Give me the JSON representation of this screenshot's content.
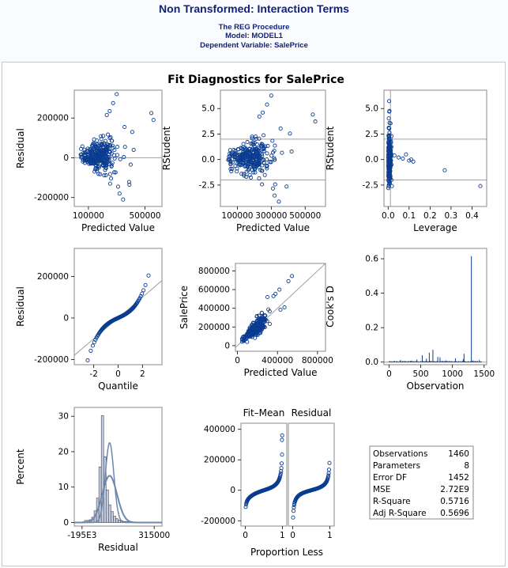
{
  "header": {
    "title": "Non Transformed: Interaction Terms",
    "procedure": "The REG Procedure",
    "model": "Model: MODEL1",
    "dependent": "Dependent Variable: SalePrice"
  },
  "figure_title": "Fit Diagnostics for SalePrice",
  "colors": {
    "marker": "#0a3d91",
    "ref": "#a0a0a0",
    "bar_fill": "#c3cbe2",
    "density": "#6e88ad",
    "heading": "#112277"
  },
  "stats_table": [
    [
      "Observations",
      "1460"
    ],
    [
      "Parameters",
      "8"
    ],
    [
      "Error DF",
      "1452"
    ],
    [
      "MSE",
      "2.72E9"
    ],
    [
      "R-Square",
      "0.5716"
    ],
    [
      "Adj R-Square",
      "0.5696"
    ]
  ],
  "chart_data": [
    {
      "id": "resid-vs-pred",
      "type": "scatter",
      "xlabel": "Predicted Value",
      "ylabel": "Residual",
      "xlim": [
        0,
        620000
      ],
      "ylim": [
        -245000,
        340000
      ],
      "xticks": [
        {
          "v": 100000,
          "t": "100000"
        },
        {
          "v": 500000,
          "t": "500000"
        }
      ],
      "yticks": [
        {
          "v": 200000,
          "t": "200000"
        },
        {
          "v": 0,
          "t": "0"
        },
        {
          "v": -200000,
          "t": "-200000"
        }
      ],
      "refs_y": [
        0
      ],
      "seed": 11
    },
    {
      "id": "rstudent-vs-pred",
      "type": "scatter",
      "xlabel": "Predicted Value",
      "ylabel": "RStudent",
      "xlim": [
        0,
        620000
      ],
      "ylim": [
        -4.6,
        6.8
      ],
      "xticks": [
        {
          "v": 100000,
          "t": "100000"
        },
        {
          "v": 300000,
          "t": "300000"
        },
        {
          "v": 500000,
          "t": "500000"
        }
      ],
      "yticks": [
        {
          "v": 5,
          "t": "5.0"
        },
        {
          "v": 2.5,
          "t": "2.5"
        },
        {
          "v": 0,
          "t": "0.0"
        },
        {
          "v": -2.5,
          "t": "-2.5"
        }
      ],
      "refs_y": [
        2,
        -2
      ],
      "seed": 23
    },
    {
      "id": "rstudent-vs-leverage",
      "type": "scatter",
      "xlabel": "Leverage",
      "ylabel": "RStudent",
      "xlim": [
        -0.02,
        0.47
      ],
      "ylim": [
        -4.6,
        6.8
      ],
      "xticks": [
        {
          "v": 0,
          "t": "0.0"
        },
        {
          "v": 0.1,
          "t": "0.1"
        },
        {
          "v": 0.2,
          "t": "0.2"
        },
        {
          "v": 0.3,
          "t": "0.3"
        },
        {
          "v": 0.4,
          "t": "0.4"
        }
      ],
      "yticks": [
        {
          "v": 5,
          "t": "5.0"
        },
        {
          "v": 2.5,
          "t": "2.5"
        },
        {
          "v": 0,
          "t": "0.0"
        },
        {
          "v": -2.5,
          "t": "-2.5"
        }
      ],
      "refs_y": [
        2,
        -2
      ],
      "refs_x": [
        0.011
      ],
      "seed": 37
    },
    {
      "id": "qq-residual",
      "type": "scatter",
      "xlabel": "Quantile",
      "ylabel": "Residual",
      "xlim": [
        -3.6,
        3.6
      ],
      "ylim": [
        -225000,
        335000
      ],
      "xticks": [
        {
          "v": -2,
          "t": "-2"
        },
        {
          "v": 0,
          "t": "0"
        },
        {
          "v": 2,
          "t": "2"
        }
      ],
      "yticks": [
        {
          "v": 200000,
          "t": "200000"
        },
        {
          "v": 0,
          "t": "0"
        },
        {
          "v": -200000,
          "t": "-200000"
        }
      ],
      "ref_line": [
        -3.6,
        -180000,
        3.6,
        180000
      ],
      "seed": 41
    },
    {
      "id": "saleprice-vs-pred",
      "type": "scatter",
      "xlabel": "Predicted Value",
      "ylabel": "SalePrice",
      "xlim": [
        -20000,
        880000
      ],
      "ylim": [
        -60000,
        880000
      ],
      "xticks": [
        {
          "v": 0,
          "t": "0"
        },
        {
          "v": 400000,
          "t": "400000"
        },
        {
          "v": 800000,
          "t": "800000"
        }
      ],
      "yticks": [
        {
          "v": 800000,
          "t": "800000"
        },
        {
          "v": 600000,
          "t": "600000"
        },
        {
          "v": 400000,
          "t": "400000"
        },
        {
          "v": 200000,
          "t": "200000"
        },
        {
          "v": 0,
          "t": "0"
        }
      ],
      "ref_line": [
        -20000,
        -20000,
        880000,
        880000
      ],
      "seed": 53
    },
    {
      "id": "cooks-d",
      "type": "needle",
      "xlabel": "Observation",
      "ylabel": "Cook's D",
      "xlim": [
        -80,
        1540
      ],
      "ylim": [
        -0.015,
        0.66
      ],
      "xticks": [
        {
          "v": 0,
          "t": "0"
        },
        {
          "v": 500,
          "t": "500"
        },
        {
          "v": 1000,
          "t": "1000"
        },
        {
          "v": 1500,
          "t": "1500"
        }
      ],
      "yticks": [
        {
          "v": 0.6,
          "t": "0.6"
        },
        {
          "v": 0.4,
          "t": "0.4"
        },
        {
          "v": 0.2,
          "t": "0.2"
        },
        {
          "v": 0,
          "t": "0.0"
        }
      ],
      "refs_y": [
        0
      ],
      "spikes": [
        [
          182,
          0.012
        ],
        [
          342,
          0.008
        ],
        [
          440,
          0.015
        ],
        [
          524,
          0.04
        ],
        [
          590,
          0.02
        ],
        [
          635,
          0.055
        ],
        [
          692,
          0.072
        ],
        [
          769,
          0.03
        ],
        [
          804,
          0.028
        ],
        [
          898,
          0.01
        ],
        [
          1047,
          0.022
        ],
        [
          1170,
          0.018
        ],
        [
          1183,
          0.048
        ],
        [
          1299,
          0.615
        ],
        [
          1325,
          0.01
        ],
        [
          1424,
          0.012
        ]
      ],
      "seed": 61
    },
    {
      "id": "residual-histogram",
      "type": "bar",
      "xlabel": "Residual",
      "ylabel": "Percent",
      "xlim": [
        -250000,
        370000
      ],
      "ylim": [
        -1,
        32.5
      ],
      "xticks": [
        {
          "v": -195000,
          "t": "-195E3"
        },
        {
          "v": 315000,
          "t": "315000"
        }
      ],
      "yticks": [
        {
          "v": 30,
          "t": "30"
        },
        {
          "v": 20,
          "t": "20"
        },
        {
          "v": 10,
          "t": "10"
        },
        {
          "v": 0,
          "t": "0"
        }
      ],
      "bin_start": -195000,
      "bin_width": 17000,
      "values": [
        0.2,
        0.6,
        0.6,
        0.8,
        1.5,
        3.3,
        6.9,
        15.7,
        30.2,
        18.6,
        9.2,
        5.0,
        3.1,
        1.8,
        1.1,
        0.7,
        0.5,
        0.3,
        0.3,
        0.2,
        0.1,
        0.1,
        0.1,
        0.0,
        0.0,
        0.0,
        0.0,
        0.0,
        0.0,
        0.1
      ],
      "normal": {
        "mean": 0,
        "sd": 52000,
        "peak": 13.2
      },
      "kernel": {
        "mean": 0,
        "sd": 30000,
        "peak": 22.5
      }
    },
    {
      "id": "rf-fit-mean",
      "type": "scatter",
      "xlabel": "Proportion Less",
      "ylabel": "",
      "panel_title": "Fit–Mean",
      "xlim": [
        -0.12,
        1.12
      ],
      "ylim": [
        -235000,
        440000
      ],
      "xticks": [
        {
          "v": 0,
          "t": "0"
        },
        {
          "v": 1,
          "t": "1"
        }
      ],
      "yticks": [
        {
          "v": 400000,
          "t": "400000"
        },
        {
          "v": 200000,
          "t": "200000"
        },
        {
          "v": 0,
          "t": "0"
        },
        {
          "v": -200000,
          "t": "-200000"
        }
      ],
      "seed": 71
    },
    {
      "id": "rf-residual",
      "type": "scatter",
      "xlabel": "",
      "ylabel": "",
      "panel_title": "Residual",
      "xlim": [
        -0.12,
        1.12
      ],
      "ylim": [
        -235000,
        440000
      ],
      "xticks": [
        {
          "v": 0,
          "t": "0"
        },
        {
          "v": 1,
          "t": "1"
        }
      ],
      "yticks": [],
      "seed": 83
    }
  ]
}
